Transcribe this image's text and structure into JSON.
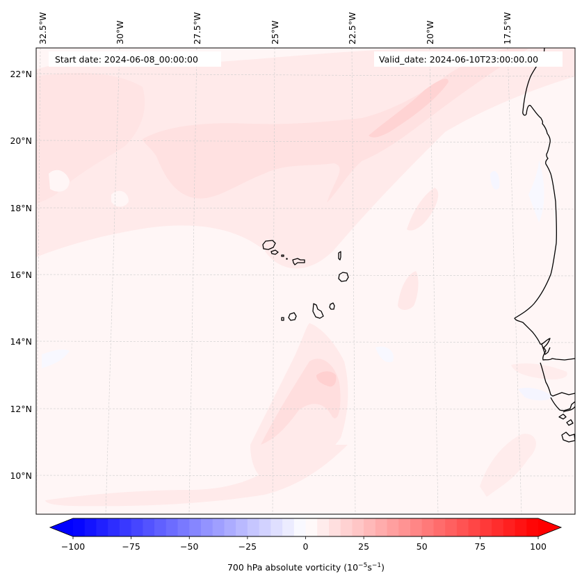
{
  "map": {
    "start_date_label": "Start date: 2024-06-08_00:00:00",
    "valid_date_label": "Valid_date: 2024-06-10T23:00:00.00",
    "lon_ticks": [
      "32.5°W",
      "30°W",
      "27.5°W",
      "25°W",
      "22.5°W",
      "20°W",
      "17.5°W"
    ],
    "lat_ticks": [
      "22°N",
      "20°N",
      "18°N",
      "16°N",
      "14°N",
      "12°N",
      "10°N"
    ],
    "gridlines": true,
    "features": [
      "coastline-west-africa",
      "cape-verde-islands"
    ]
  },
  "colorbar": {
    "label": "700 hPa absolute vorticity (10",
    "label_exp1": "−5",
    "label_mid": "s",
    "label_exp2": "−1",
    "label_end": ")",
    "min": -100,
    "max": 100,
    "step": 5,
    "extend": "both",
    "cmap": "bwr",
    "ticks": [
      "−100",
      "−75",
      "−50",
      "−25",
      "0",
      "25",
      "50",
      "75",
      "100"
    ],
    "tick_values": [
      -100,
      -75,
      -50,
      -25,
      0,
      25,
      50,
      75,
      100
    ],
    "colors": {
      "low": "#0000ff",
      "mid": "#ffffff",
      "high": "#ff0000"
    }
  },
  "chart_data": {
    "type": "heatmap",
    "title": "",
    "variable": "700 hPa absolute vorticity",
    "units": "10^-5 s^-1",
    "xlabel": "",
    "ylabel": "",
    "x_ticks": [
      "32.5°W",
      "30°W",
      "27.5°W",
      "25°W",
      "22.5°W",
      "20°W",
      "17.5°W"
    ],
    "y_ticks": [
      "22°N",
      "20°N",
      "18°N",
      "16°N",
      "14°N",
      "12°N",
      "10°N"
    ],
    "lat_range": [
      9,
      22.7
    ],
    "lon_range": [
      -33,
      -15.2
    ],
    "value_range": [
      -100,
      100
    ],
    "regions": [
      {
        "name": "background",
        "value": 2
      },
      {
        "name": "northern-band-28-22W-19N",
        "value": 10
      },
      {
        "name": "northeast-streak-22-18W-21N",
        "value": 15
      },
      {
        "name": "southern-vortex-24W-12.8N",
        "value": 20
      },
      {
        "name": "southern-band-9.5N",
        "value": 7
      },
      {
        "name": "coastal-negative-patches",
        "value": -5
      }
    ]
  }
}
